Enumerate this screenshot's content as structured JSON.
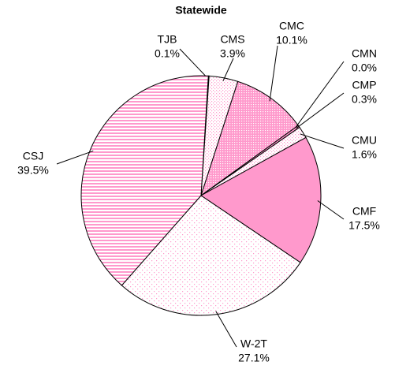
{
  "chart_data": {
    "type": "pie",
    "title": "Statewide",
    "categories": [
      "TJB",
      "CMS",
      "CMC",
      "CMN",
      "CMP",
      "CMU",
      "CMF",
      "W-2T",
      "CSJ"
    ],
    "values": [
      0.1,
      3.9,
      10.1,
      0.0,
      0.3,
      1.6,
      17.5,
      27.1,
      39.5
    ],
    "value_labels": [
      "0.1%",
      "3.9%",
      "10.1%",
      "0.0%",
      "0.3%",
      "1.6%",
      "17.5%",
      "27.1%",
      "39.5%"
    ],
    "colors": [
      "#ff99cc",
      "#ff99cc",
      "#ff99cc",
      "#ff99cc",
      "#ff99cc",
      "#ff99cc",
      "#ff99cc",
      "#ff99cc",
      "#ff99cc"
    ],
    "patterns": [
      "solid",
      "dots-light",
      "dots-dense",
      "solid",
      "solid",
      "dots-light",
      "solid",
      "dots-sparse",
      "stripes"
    ]
  }
}
